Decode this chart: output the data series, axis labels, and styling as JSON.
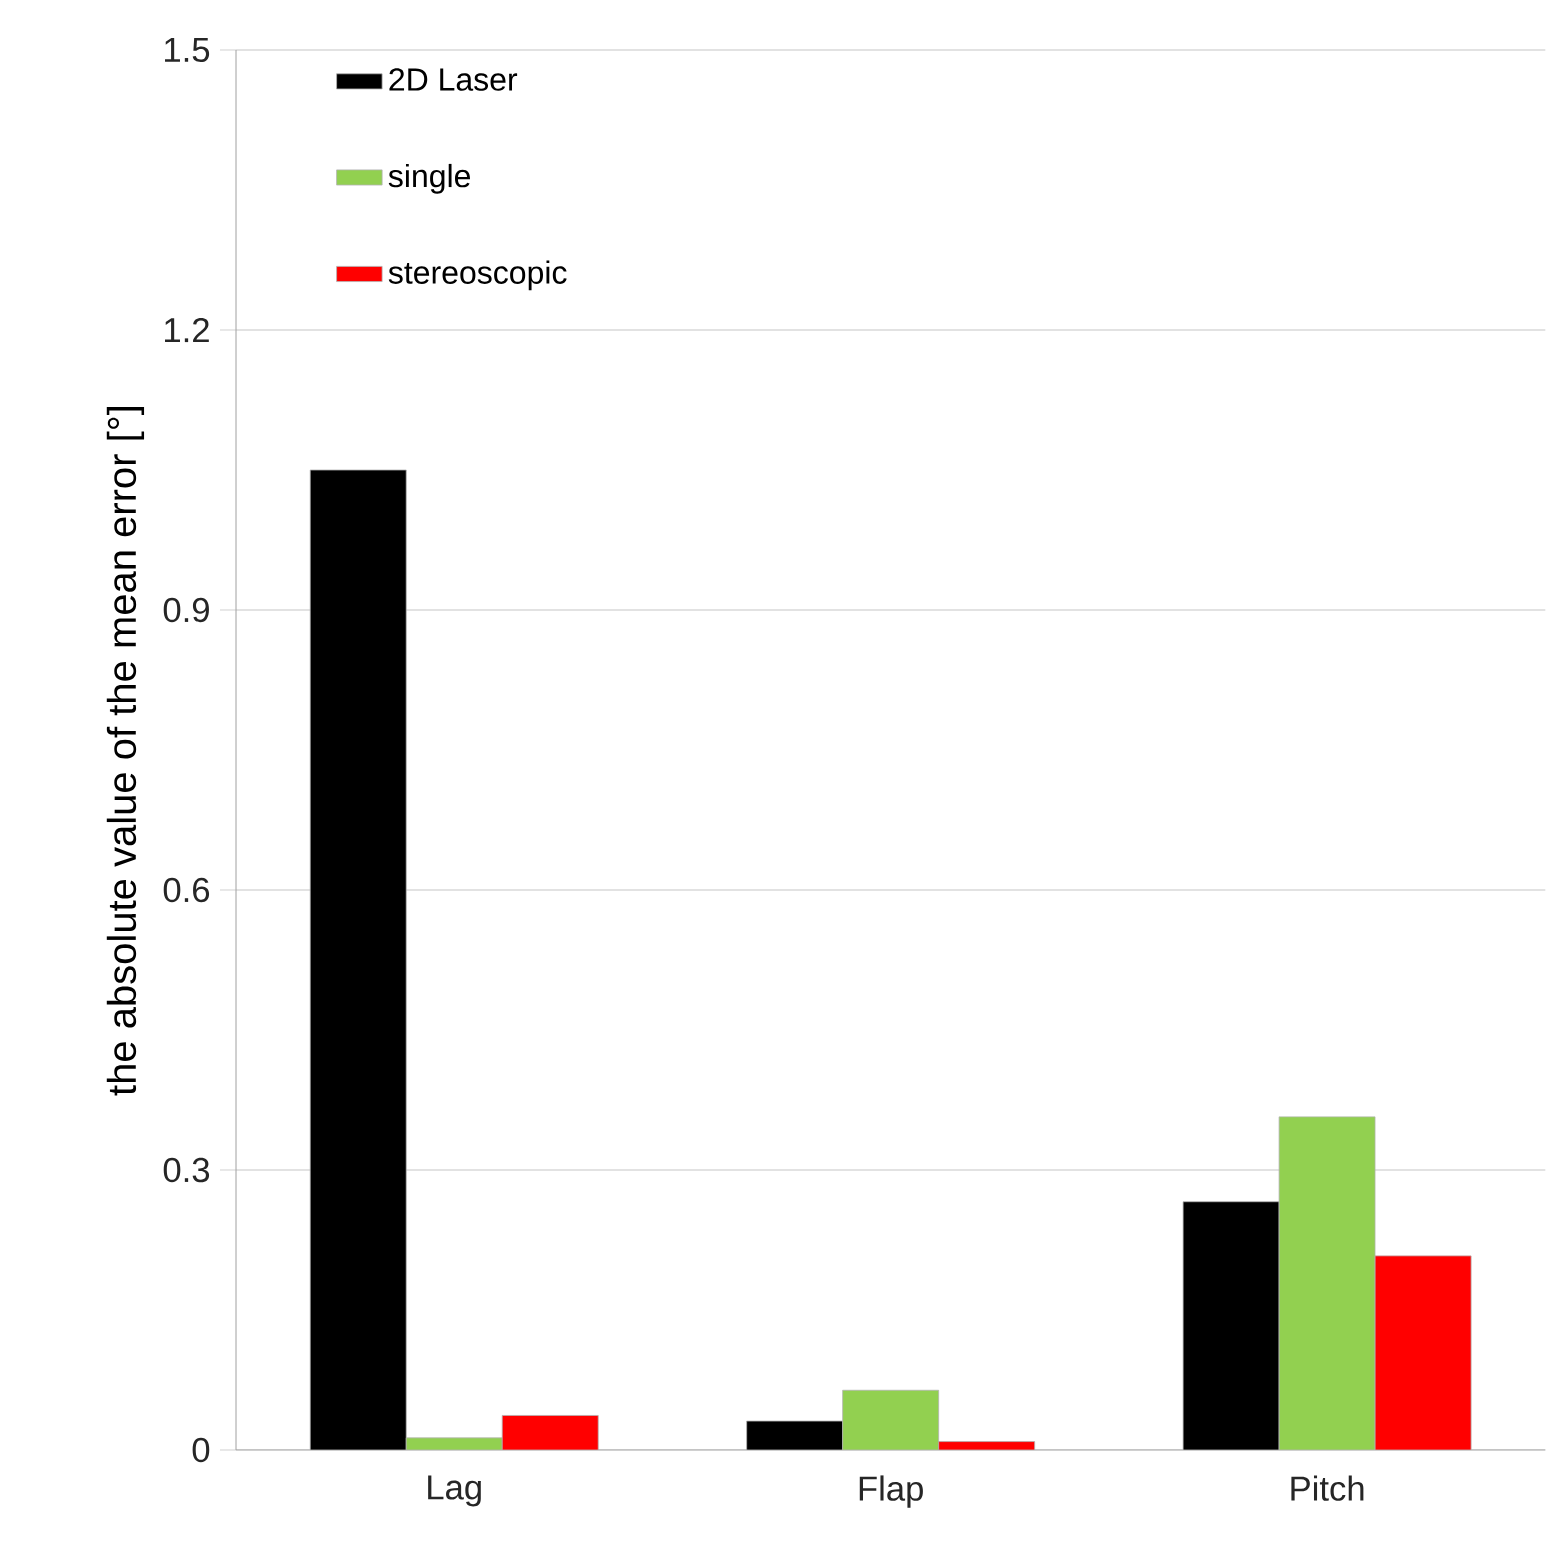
{
  "chart_data": {
    "type": "bar",
    "ylabel": "the absolute value of the mean error [°]",
    "categories": [
      "Lag",
      "Flap",
      "Pitch"
    ],
    "series": [
      {
        "name": "2D Laser",
        "color": "#000000",
        "values": [
          1.05,
          0.031,
          0.266
        ]
      },
      {
        "name": "single",
        "color": "#92d050",
        "values": [
          0.013,
          0.064,
          0.357
        ]
      },
      {
        "name": "stereoscopic",
        "color": "#ff0000",
        "values": [
          0.037,
          0.009,
          0.208
        ]
      }
    ],
    "ylim": [
      0,
      1.5
    ],
    "yticks": [
      0,
      0.3,
      0.6,
      0.9,
      1.2,
      1.5
    ],
    "grid": "y",
    "legend": "top left"
  }
}
